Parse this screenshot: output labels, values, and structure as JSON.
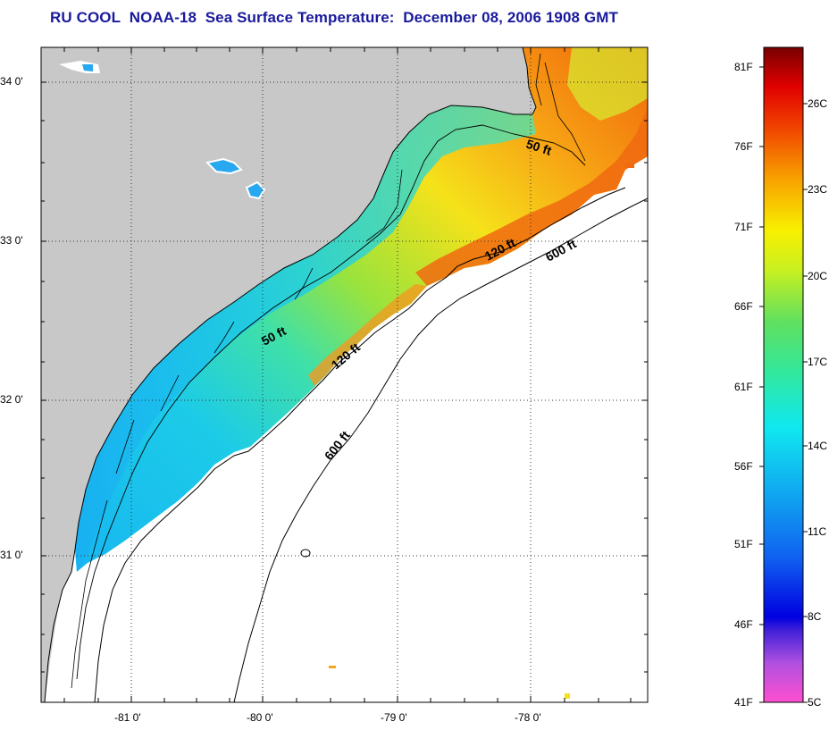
{
  "title": {
    "org": "RU COOL",
    "satellite": "NOAA-18",
    "product": "Sea Surface Temperature:",
    "date": "December 08, 2006 1908 GMT"
  },
  "map": {
    "region": "South Carolina / Georgia coast",
    "lat_labels": [
      "34 0'",
      "33 0'",
      "32 0'",
      "31 0'"
    ],
    "lon_labels": [
      "-81 0'",
      "-80 0'",
      "-79 0'",
      "-78 0'"
    ],
    "isobath_labels": {
      "north_50": "50 ft",
      "north_120": "120 ft",
      "north_600": "600 ft",
      "south_50": "50 ft",
      "south_120": "120 ft",
      "south_600": "600 ft"
    },
    "colors": {
      "land": "#c8c8c8",
      "no_data": "#ffffff",
      "cold": "#19bff2",
      "mid": "#7fe04a",
      "warm": "#f5e21a",
      "hot": "#f0600a",
      "grid": "#444444"
    }
  },
  "colorbar": {
    "fahrenheit": [
      "81F",
      "76F",
      "71F",
      "66F",
      "61F",
      "56F",
      "51F",
      "46F",
      "41F"
    ],
    "celsius": [
      "26C",
      "23C",
      "20C",
      "17C",
      "14C",
      "11C",
      "8C",
      "5C"
    ],
    "range_f": [
      41,
      81
    ],
    "range_c": [
      5,
      27
    ]
  }
}
